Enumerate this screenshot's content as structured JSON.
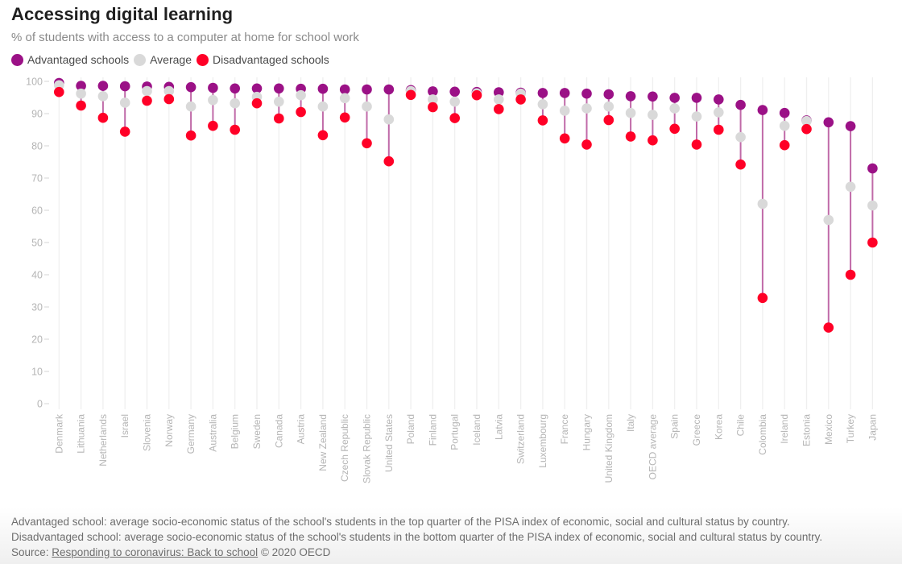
{
  "header": {
    "title": "Accessing digital learning",
    "subtitle": "% of students with access to a computer at home for school work"
  },
  "legend": [
    {
      "label": "Advantaged schools",
      "color": "#9b1186"
    },
    {
      "label": "Average",
      "color": "#d9d9d9"
    },
    {
      "label": "Disadvantaged schools",
      "color": "#ff0027"
    }
  ],
  "colors": {
    "advantaged": "#9b1186",
    "average": "#d9d9d9",
    "disadvantaged": "#ff0027",
    "connector": "#c06aa8",
    "gridline": "#efefef",
    "tick_text": "#b5b5b5"
  },
  "chart_data": {
    "type": "dot-range",
    "title": "Accessing digital learning",
    "subtitle": "% of students with access to a computer at home for school work",
    "xlabel": "",
    "ylabel": "",
    "ylim": [
      0,
      100
    ],
    "yticks": [
      0,
      10,
      20,
      30,
      40,
      50,
      60,
      70,
      80,
      90,
      100
    ],
    "grid": "vertical",
    "legend_position": "top-left",
    "categories": [
      "Denmark",
      "Lithuania",
      "Netherlands",
      "Israel",
      "Slovenia",
      "Norway",
      "Germany",
      "Australia",
      "Belgium",
      "Sweden",
      "Canada",
      "Austria",
      "New Zealand",
      "Czech Republic",
      "Slovak Republic",
      "United States",
      "Poland",
      "Finland",
      "Portugal",
      "Iceland",
      "Latvia",
      "Switzerland",
      "Luxembourg",
      "France",
      "Hungary",
      "United Kingdom",
      "Italy",
      "OECD average",
      "Spain",
      "Greece",
      "Korea",
      "Chile",
      "Colombia",
      "Ireland",
      "Estonia",
      "Mexico",
      "Turkey",
      "Japan"
    ],
    "series": [
      {
        "name": "Advantaged schools",
        "values": [
          99.5,
          98.6,
          98.6,
          98.5,
          98.4,
          98.3,
          98.2,
          98.0,
          97.8,
          97.8,
          97.8,
          97.7,
          97.7,
          97.5,
          97.5,
          97.5,
          97.3,
          96.9,
          96.8,
          96.7,
          96.6,
          96.5,
          96.4,
          96.4,
          96.2,
          96.0,
          95.4,
          95.3,
          94.9,
          94.9,
          94.4,
          92.7,
          91.1,
          90.2,
          87.9,
          87.3,
          86.1,
          73.0
        ]
      },
      {
        "name": "Average",
        "values": [
          98.8,
          96.2,
          95.4,
          93.4,
          97.0,
          97.0,
          92.2,
          94.2,
          93.2,
          95.2,
          93.7,
          95.7,
          92.2,
          94.8,
          92.2,
          88.2,
          97.0,
          94.4,
          93.7,
          96.3,
          94.4,
          96.2,
          92.9,
          90.9,
          91.6,
          92.2,
          90.2,
          89.6,
          91.6,
          89.1,
          90.4,
          82.7,
          62.0,
          86.2,
          87.7,
          57.0,
          67.3,
          61.5
        ]
      },
      {
        "name": "Disadvantaged schools",
        "values": [
          96.7,
          92.5,
          88.7,
          84.4,
          94.0,
          94.5,
          83.2,
          86.2,
          85.0,
          93.2,
          88.5,
          90.5,
          83.3,
          88.8,
          80.8,
          75.2,
          95.8,
          92.0,
          88.6,
          95.7,
          91.4,
          94.4,
          87.9,
          82.3,
          80.4,
          88.0,
          82.9,
          81.7,
          85.3,
          80.4,
          85.0,
          74.2,
          32.8,
          80.2,
          85.2,
          23.6,
          40.0,
          50.0
        ]
      }
    ]
  },
  "footer": {
    "note_advantaged": "Advantaged school: average socio-economic status of the school's students in the top quarter of the PISA index of economic, social and cultural status by country.",
    "note_disadvantaged": "Disadvantaged school: average socio-economic status of the school's students in the bottom quarter of the PISA index of economic, social and cultural status by country.",
    "source_prefix": "Source: ",
    "source_link": "Responding to coronavirus: Back to school",
    "source_suffix": " © 2020 OECD"
  }
}
